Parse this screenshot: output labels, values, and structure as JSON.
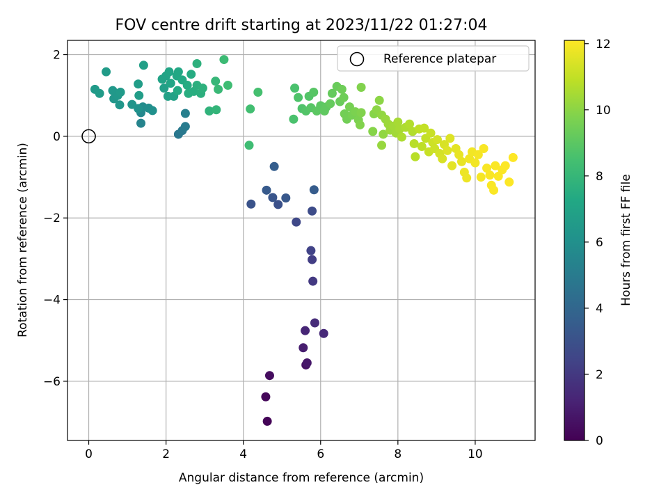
{
  "chart_data": {
    "type": "scatter",
    "title": "FOV centre drift starting at 2023/11/22 01:27:04",
    "xlabel": "Angular distance from reference (arcmin)",
    "ylabel": "Rotation from reference (arcmin)",
    "xlim": [
      -0.55,
      11.55
    ],
    "ylim": [
      -7.45,
      2.35
    ],
    "xticks": [
      0,
      2,
      4,
      6,
      8,
      10
    ],
    "yticks": [
      -6,
      -4,
      -2,
      0,
      2
    ],
    "xtick_labels": [
      "0",
      "2",
      "4",
      "6",
      "8",
      "10"
    ],
    "ytick_labels": [
      "−6",
      "−4",
      "−2",
      "0",
      "2"
    ],
    "grid": true,
    "colormap": "viridis",
    "colorbar": {
      "label": "Hours from first FF file",
      "range": [
        0,
        12.1
      ],
      "ticks": [
        0,
        2,
        4,
        6,
        8,
        10,
        12
      ],
      "tick_labels": [
        "0",
        "2",
        "4",
        "6",
        "8",
        "10",
        "12"
      ]
    },
    "reference_marker": {
      "x": 0,
      "y": 0,
      "label": "Reference platepar"
    },
    "legend": {
      "entries": [
        "Reference platepar"
      ],
      "position": "top-right"
    },
    "points": [
      {
        "x": 4.62,
        "y": -6.98,
        "h": 0.1
      },
      {
        "x": 4.58,
        "y": -6.38,
        "h": 0.2
      },
      {
        "x": 4.68,
        "y": -5.86,
        "h": 0.4
      },
      {
        "x": 5.62,
        "y": -5.6,
        "h": 0.6
      },
      {
        "x": 5.65,
        "y": -5.55,
        "h": 0.8
      },
      {
        "x": 5.55,
        "y": -5.18,
        "h": 1.0
      },
      {
        "x": 5.6,
        "y": -4.76,
        "h": 1.3
      },
      {
        "x": 5.85,
        "y": -4.57,
        "h": 1.5
      },
      {
        "x": 6.08,
        "y": -4.83,
        "h": 1.4
      },
      {
        "x": 5.8,
        "y": -3.55,
        "h": 2.0
      },
      {
        "x": 5.78,
        "y": -3.02,
        "h": 2.2
      },
      {
        "x": 5.75,
        "y": -2.8,
        "h": 2.4
      },
      {
        "x": 5.37,
        "y": -2.1,
        "h": 2.6
      },
      {
        "x": 5.78,
        "y": -1.83,
        "h": 2.8
      },
      {
        "x": 4.9,
        "y": -1.67,
        "h": 3.0
      },
      {
        "x": 4.2,
        "y": -1.66,
        "h": 3.1
      },
      {
        "x": 4.76,
        "y": -1.5,
        "h": 3.2
      },
      {
        "x": 5.1,
        "y": -1.51,
        "h": 3.3
      },
      {
        "x": 4.6,
        "y": -1.32,
        "h": 3.4
      },
      {
        "x": 5.83,
        "y": -1.31,
        "h": 3.5
      },
      {
        "x": 4.8,
        "y": -0.74,
        "h": 3.6
      },
      {
        "x": 2.32,
        "y": 0.05,
        "h": 4.8
      },
      {
        "x": 2.42,
        "y": 0.14,
        "h": 4.9
      },
      {
        "x": 2.5,
        "y": 0.24,
        "h": 5.0
      },
      {
        "x": 2.5,
        "y": 0.56,
        "h": 5.2
      },
      {
        "x": 1.35,
        "y": 0.32,
        "h": 5.4
      },
      {
        "x": 1.35,
        "y": 0.58,
        "h": 5.6
      },
      {
        "x": 1.4,
        "y": 0.72,
        "h": 5.8
      },
      {
        "x": 1.55,
        "y": 0.69,
        "h": 5.9
      },
      {
        "x": 1.65,
        "y": 0.63,
        "h": 6.0
      },
      {
        "x": 1.28,
        "y": 0.68,
        "h": 6.1
      },
      {
        "x": 1.12,
        "y": 0.78,
        "h": 6.2
      },
      {
        "x": 0.8,
        "y": 0.77,
        "h": 6.3
      },
      {
        "x": 0.65,
        "y": 0.92,
        "h": 6.3
      },
      {
        "x": 0.75,
        "y": 1.0,
        "h": 6.4
      },
      {
        "x": 0.62,
        "y": 1.12,
        "h": 6.4
      },
      {
        "x": 0.82,
        "y": 1.08,
        "h": 6.5
      },
      {
        "x": 0.16,
        "y": 1.15,
        "h": 6.5
      },
      {
        "x": 0.28,
        "y": 1.05,
        "h": 6.6
      },
      {
        "x": 0.45,
        "y": 1.58,
        "h": 6.6
      },
      {
        "x": 1.28,
        "y": 1.28,
        "h": 6.7
      },
      {
        "x": 1.3,
        "y": 1.0,
        "h": 6.7
      },
      {
        "x": 1.42,
        "y": 1.74,
        "h": 6.8
      },
      {
        "x": 1.95,
        "y": 1.18,
        "h": 6.8
      },
      {
        "x": 2.05,
        "y": 0.98,
        "h": 6.9
      },
      {
        "x": 2.2,
        "y": 0.98,
        "h": 6.9
      },
      {
        "x": 1.9,
        "y": 1.4,
        "h": 7.0
      },
      {
        "x": 2.0,
        "y": 1.48,
        "h": 7.0
      },
      {
        "x": 2.08,
        "y": 1.58,
        "h": 7.1
      },
      {
        "x": 2.12,
        "y": 1.3,
        "h": 7.1
      },
      {
        "x": 2.28,
        "y": 1.48,
        "h": 7.2
      },
      {
        "x": 2.32,
        "y": 1.58,
        "h": 7.2
      },
      {
        "x": 2.3,
        "y": 1.12,
        "h": 7.3
      },
      {
        "x": 2.42,
        "y": 1.38,
        "h": 7.3
      },
      {
        "x": 2.55,
        "y": 1.25,
        "h": 7.4
      },
      {
        "x": 2.65,
        "y": 1.52,
        "h": 7.4
      },
      {
        "x": 2.58,
        "y": 1.05,
        "h": 7.5
      },
      {
        "x": 2.72,
        "y": 1.1,
        "h": 7.5
      },
      {
        "x": 2.8,
        "y": 1.25,
        "h": 7.6
      },
      {
        "x": 2.9,
        "y": 1.05,
        "h": 7.6
      },
      {
        "x": 2.95,
        "y": 1.18,
        "h": 7.7
      },
      {
        "x": 2.8,
        "y": 1.78,
        "h": 7.7
      },
      {
        "x": 3.12,
        "y": 0.62,
        "h": 7.8
      },
      {
        "x": 3.3,
        "y": 0.65,
        "h": 7.9
      },
      {
        "x": 3.28,
        "y": 1.35,
        "h": 8.0
      },
      {
        "x": 3.35,
        "y": 1.15,
        "h": 8.1
      },
      {
        "x": 3.5,
        "y": 1.88,
        "h": 8.2
      },
      {
        "x": 3.6,
        "y": 1.25,
        "h": 8.3
      },
      {
        "x": 4.15,
        "y": -0.22,
        "h": 8.3
      },
      {
        "x": 4.18,
        "y": 0.67,
        "h": 8.4
      },
      {
        "x": 4.38,
        "y": 1.08,
        "h": 8.5
      },
      {
        "x": 5.3,
        "y": 0.42,
        "h": 8.6
      },
      {
        "x": 5.33,
        "y": 1.18,
        "h": 8.6
      },
      {
        "x": 5.42,
        "y": 0.95,
        "h": 8.7
      },
      {
        "x": 5.52,
        "y": 0.68,
        "h": 8.7
      },
      {
        "x": 5.62,
        "y": 0.62,
        "h": 8.8
      },
      {
        "x": 5.7,
        "y": 0.98,
        "h": 8.8
      },
      {
        "x": 5.75,
        "y": 0.7,
        "h": 8.9
      },
      {
        "x": 5.82,
        "y": 1.08,
        "h": 8.9
      },
      {
        "x": 5.9,
        "y": 0.62,
        "h": 9.0
      },
      {
        "x": 6.0,
        "y": 0.75,
        "h": 9.0
      },
      {
        "x": 6.1,
        "y": 0.62,
        "h": 9.1
      },
      {
        "x": 6.15,
        "y": 0.72,
        "h": 9.1
      },
      {
        "x": 6.25,
        "y": 0.8,
        "h": 9.2
      },
      {
        "x": 6.3,
        "y": 1.05,
        "h": 9.2
      },
      {
        "x": 6.42,
        "y": 1.22,
        "h": 9.3
      },
      {
        "x": 6.5,
        "y": 0.85,
        "h": 9.3
      },
      {
        "x": 6.55,
        "y": 1.15,
        "h": 9.4
      },
      {
        "x": 6.6,
        "y": 0.95,
        "h": 9.4
      },
      {
        "x": 6.62,
        "y": 0.55,
        "h": 9.5
      },
      {
        "x": 6.68,
        "y": 0.42,
        "h": 9.5
      },
      {
        "x": 6.75,
        "y": 0.72,
        "h": 9.6
      },
      {
        "x": 6.82,
        "y": 0.52,
        "h": 9.6
      },
      {
        "x": 6.9,
        "y": 0.6,
        "h": 9.7
      },
      {
        "x": 6.98,
        "y": 0.4,
        "h": 9.7
      },
      {
        "x": 7.02,
        "y": 0.28,
        "h": 9.8
      },
      {
        "x": 7.05,
        "y": 0.58,
        "h": 9.8
      },
      {
        "x": 7.05,
        "y": 1.2,
        "h": 9.8
      },
      {
        "x": 7.35,
        "y": 0.12,
        "h": 9.9
      },
      {
        "x": 7.38,
        "y": 0.55,
        "h": 9.9
      },
      {
        "x": 7.45,
        "y": 0.65,
        "h": 10.0
      },
      {
        "x": 7.52,
        "y": 0.88,
        "h": 10.0
      },
      {
        "x": 7.58,
        "y": 0.52,
        "h": 10.1
      },
      {
        "x": 7.62,
        "y": 0.05,
        "h": 10.1
      },
      {
        "x": 7.58,
        "y": -0.22,
        "h": 10.2
      },
      {
        "x": 7.68,
        "y": 0.42,
        "h": 10.2
      },
      {
        "x": 7.75,
        "y": 0.3,
        "h": 10.3
      },
      {
        "x": 7.8,
        "y": 0.15,
        "h": 10.3
      },
      {
        "x": 7.88,
        "y": 0.25,
        "h": 10.4
      },
      {
        "x": 7.95,
        "y": 0.08,
        "h": 10.4
      },
      {
        "x": 8.0,
        "y": 0.35,
        "h": 10.5
      },
      {
        "x": 8.05,
        "y": 0.18,
        "h": 10.5
      },
      {
        "x": 8.1,
        "y": -0.02,
        "h": 10.6
      },
      {
        "x": 8.2,
        "y": 0.22,
        "h": 10.6
      },
      {
        "x": 8.3,
        "y": 0.3,
        "h": 10.7
      },
      {
        "x": 8.38,
        "y": 0.12,
        "h": 10.7
      },
      {
        "x": 8.42,
        "y": -0.18,
        "h": 10.8
      },
      {
        "x": 8.45,
        "y": -0.5,
        "h": 10.8
      },
      {
        "x": 8.55,
        "y": 0.18,
        "h": 10.9
      },
      {
        "x": 8.62,
        "y": -0.25,
        "h": 10.9
      },
      {
        "x": 8.68,
        "y": 0.2,
        "h": 11.0
      },
      {
        "x": 8.72,
        "y": -0.05,
        "h": 11.0
      },
      {
        "x": 8.8,
        "y": -0.38,
        "h": 11.1
      },
      {
        "x": 8.85,
        "y": 0.08,
        "h": 11.1
      },
      {
        "x": 8.9,
        "y": -0.15,
        "h": 11.2
      },
      {
        "x": 8.95,
        "y": -0.3,
        "h": 11.2
      },
      {
        "x": 9.02,
        "y": -0.08,
        "h": 11.3
      },
      {
        "x": 9.08,
        "y": -0.42,
        "h": 11.3
      },
      {
        "x": 9.15,
        "y": -0.55,
        "h": 11.4
      },
      {
        "x": 9.2,
        "y": -0.2,
        "h": 11.4
      },
      {
        "x": 9.28,
        "y": -0.35,
        "h": 11.5
      },
      {
        "x": 9.35,
        "y": -0.05,
        "h": 11.5
      },
      {
        "x": 9.4,
        "y": -0.72,
        "h": 11.6
      },
      {
        "x": 9.5,
        "y": -0.3,
        "h": 11.6
      },
      {
        "x": 9.58,
        "y": -0.45,
        "h": 11.7
      },
      {
        "x": 9.65,
        "y": -0.62,
        "h": 11.7
      },
      {
        "x": 9.72,
        "y": -0.88,
        "h": 11.8
      },
      {
        "x": 9.78,
        "y": -1.02,
        "h": 11.8
      },
      {
        "x": 9.85,
        "y": -0.55,
        "h": 11.85
      },
      {
        "x": 9.92,
        "y": -0.38,
        "h": 11.9
      },
      {
        "x": 10.0,
        "y": -0.65,
        "h": 11.9
      },
      {
        "x": 10.08,
        "y": -0.45,
        "h": 11.95
      },
      {
        "x": 10.15,
        "y": -1.0,
        "h": 11.95
      },
      {
        "x": 10.22,
        "y": -0.3,
        "h": 12.0
      },
      {
        "x": 10.3,
        "y": -0.78,
        "h": 12.0
      },
      {
        "x": 10.38,
        "y": -0.95,
        "h": 12.02
      },
      {
        "x": 10.42,
        "y": -1.2,
        "h": 12.03
      },
      {
        "x": 10.48,
        "y": -1.32,
        "h": 12.04
      },
      {
        "x": 10.52,
        "y": -0.72,
        "h": 12.05
      },
      {
        "x": 10.6,
        "y": -0.98,
        "h": 12.06
      },
      {
        "x": 10.7,
        "y": -0.82,
        "h": 12.07
      },
      {
        "x": 10.78,
        "y": -0.72,
        "h": 12.08
      },
      {
        "x": 10.88,
        "y": -1.12,
        "h": 12.09
      },
      {
        "x": 10.98,
        "y": -0.52,
        "h": 12.1
      }
    ]
  }
}
